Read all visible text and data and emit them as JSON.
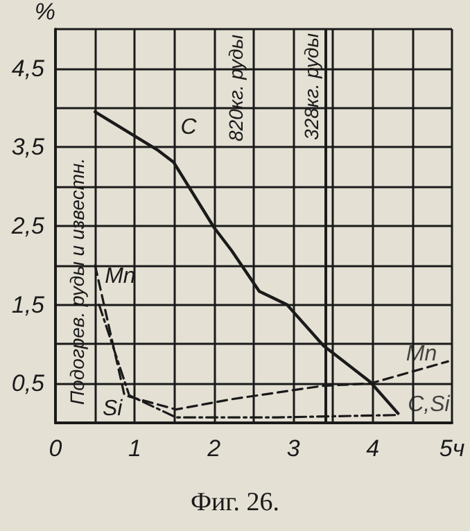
{
  "chart_data": {
    "type": "line",
    "title": "Фиг. 26.",
    "ylabel": "%",
    "xlim": [
      0,
      5
    ],
    "ylim": [
      0,
      5
    ],
    "xticks": [
      0,
      {
        "value": 0.5,
        "label": null
      },
      1,
      {
        "value": 1.5,
        "label": null
      },
      2,
      {
        "value": 2.5,
        "label": null
      },
      3,
      {
        "value": 3.5,
        "label": null
      },
      4,
      {
        "value": 4.5,
        "label": null
      },
      {
        "value": 5,
        "label": "5ч"
      }
    ],
    "yticks": [
      {
        "value": 0,
        "label": null
      },
      {
        "value": 0.5,
        "label": "0,5"
      },
      {
        "value": 1,
        "label": null
      },
      {
        "value": 1.5,
        "label": "1,5"
      },
      {
        "value": 2,
        "label": null
      },
      {
        "value": 2.5,
        "label": "2,5"
      },
      {
        "value": 3,
        "label": null
      },
      {
        "value": 3.5,
        "label": "3,5"
      },
      {
        "value": 4,
        "label": null
      },
      {
        "value": 4.5,
        "label": "4,5"
      },
      {
        "value": 5,
        "label": null
      }
    ],
    "grid": true,
    "legend": false,
    "marker": "none",
    "series": [
      {
        "name": "C",
        "color": "#1a1a1a",
        "line_style": "solid",
        "x": [
          0.5,
          1.28,
          1.49,
          2.0,
          2.22,
          2.57,
          2.92,
          3.38,
          3.97,
          4.32
        ],
        "values": [
          3.95,
          3.47,
          3.31,
          2.48,
          2.19,
          1.67,
          1.5,
          0.98,
          0.52,
          0.12
        ]
      },
      {
        "name": "Mn",
        "color": "#1a1a1a",
        "line_style": "dashed",
        "x": [
          0.5,
          0.87,
          1.52,
          2.22,
          3.37,
          3.97,
          4.95
        ],
        "values": [
          2.0,
          0.35,
          0.17,
          0.3,
          0.47,
          0.5,
          0.78
        ]
      },
      {
        "name": "Si",
        "color": "#1a1a1a",
        "line_style": "dashdot",
        "x": [
          0.55,
          0.93,
          1.52,
          2.8,
          4.32
        ],
        "values": [
          1.5,
          0.35,
          0.07,
          0.07,
          0.1
        ]
      }
    ],
    "ref_lines": [
      {
        "axis": "x",
        "value": 3.4,
        "label": "328кг. руды"
      }
    ],
    "annotations": [
      "Подогрев. руды и известн.",
      "820кг. руды",
      {
        "text": "Mn",
        "x": 4.95,
        "y": 0.78
      },
      {
        "text": "C,Si",
        "x": 4.32,
        "y": 0.12
      }
    ]
  }
}
